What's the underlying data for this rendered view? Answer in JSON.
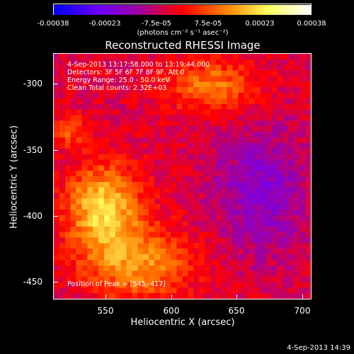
{
  "colorbar": {
    "ticks": [
      "-0.00038",
      "-0.00023",
      "-7.5e-05",
      "7.5e-05",
      "0.00023",
      "0.00038"
    ],
    "units": "(photons cm⁻² s⁻¹ asec⁻²)",
    "colors": [
      "#0000ff",
      "#6a00ff",
      "#a000a0",
      "#ff0000",
      "#ff8000",
      "#ffff60",
      "#ffffff"
    ]
  },
  "title": "Reconstructed RHESSI Image",
  "info": {
    "time_range": "4-Sep-2013 13:17:58.000 to 13:19:44.000",
    "detectors": "Detectors: 3F 5F 6F 7F 8F 9F, Att 0",
    "energy": "Energy Range: 25.0 - 50.0 keV",
    "clean": "Clean     Total counts: 2.32E+03",
    "peak": "Position of Peak = [545,-417]"
  },
  "axes": {
    "xlabel": "Heliocentric X (arcsec)",
    "ylabel": "Heliocentric Y (arcsec)",
    "xticks": [
      "550",
      "600",
      "650",
      "700"
    ],
    "yticks": [
      "-300",
      "-350",
      "-400",
      "-450"
    ],
    "xlim": [
      508,
      703
    ],
    "ylim": [
      -468,
      -277
    ]
  },
  "timestamp": "4-Sep-2013 14:39"
}
